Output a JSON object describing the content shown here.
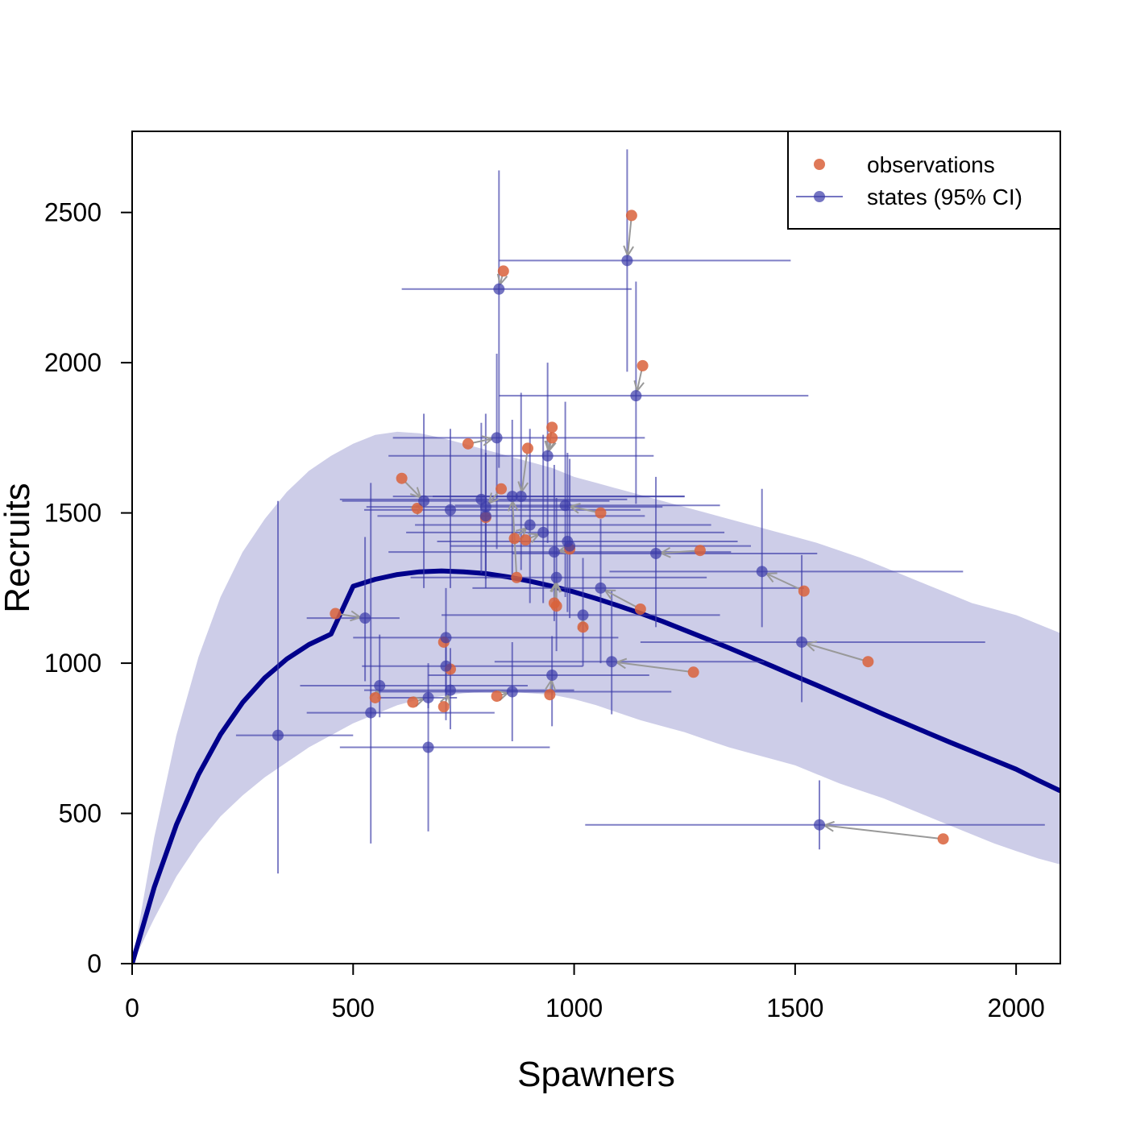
{
  "chart_data": {
    "type": "scatter",
    "title": "",
    "xlabel": "Spawners",
    "ylabel": "Recruits",
    "xlim": [
      0,
      2100
    ],
    "ylim": [
      0,
      2770
    ],
    "xticks": [
      0,
      500,
      1000,
      1500,
      2000
    ],
    "yticks": [
      0,
      500,
      1000,
      1500,
      2000,
      2500
    ],
    "legend_position": "top-right",
    "colors": {
      "observations": "#d9623b",
      "states": "#3b3ba8",
      "ci_band": "#cdcde8",
      "curve": "#00008b",
      "arrow": "#999999"
    },
    "legend": [
      {
        "label": "observations",
        "kind": "point"
      },
      {
        "label": "states (95% CI)",
        "kind": "point-line"
      }
    ],
    "curve": {
      "name": "",
      "x": [
        0,
        50,
        100,
        150,
        200,
        250,
        300,
        350,
        400,
        450,
        500,
        550,
        600,
        650,
        700,
        750,
        800,
        850,
        900,
        950,
        1000,
        1050,
        1100,
        1150,
        1200,
        1250,
        1300,
        1350,
        1400,
        1450,
        1500,
        1550,
        1600,
        1650,
        1700,
        1750,
        1800,
        1850,
        1900,
        1950,
        2000,
        2050,
        2100
      ],
      "y": [
        0,
        254,
        462,
        629,
        763,
        869,
        951,
        1014,
        1062,
        1097,
        1256,
        1279,
        1295,
        1304,
        1307,
        1304,
        1298,
        1287,
        1273,
        1256,
        1237,
        1215,
        1191,
        1166,
        1139,
        1110,
        1081,
        1051,
        1020,
        989,
        957,
        926,
        894,
        862,
        830,
        799,
        768,
        737,
        707,
        677,
        647,
        610,
        575
      ]
    },
    "band": {
      "x": [
        0,
        50,
        100,
        150,
        200,
        250,
        300,
        350,
        400,
        450,
        500,
        550,
        600,
        650,
        700,
        750,
        800,
        850,
        900,
        950,
        1000,
        1050,
        1100,
        1150,
        1200,
        1250,
        1300,
        1350,
        1400,
        1450,
        1500,
        1550,
        1600,
        1650,
        1700,
        1750,
        1800,
        1850,
        1900,
        1950,
        2000,
        2050,
        2100
      ],
      "upper": [
        0,
        420,
        760,
        1020,
        1220,
        1370,
        1480,
        1570,
        1640,
        1690,
        1730,
        1760,
        1770,
        1765,
        1750,
        1730,
        1710,
        1690,
        1670,
        1650,
        1620,
        1600,
        1580,
        1560,
        1540,
        1520,
        1500,
        1480,
        1460,
        1440,
        1420,
        1400,
        1375,
        1350,
        1320,
        1290,
        1260,
        1230,
        1200,
        1180,
        1160,
        1130,
        1100
      ],
      "lower": [
        0,
        150,
        290,
        400,
        490,
        560,
        620,
        670,
        720,
        760,
        800,
        830,
        860,
        880,
        890,
        900,
        905,
        905,
        900,
        895,
        880,
        860,
        835,
        810,
        790,
        770,
        745,
        720,
        700,
        680,
        660,
        630,
        600,
        575,
        550,
        520,
        490,
        460,
        430,
        400,
        375,
        350,
        330
      ]
    },
    "states": [
      {
        "x": 330,
        "y": 760,
        "xlo": 235,
        "xhi": 500,
        "ylo": 300,
        "yhi": 1540
      },
      {
        "x": 527,
        "y": 1150,
        "xlo": 395,
        "xhi": 605,
        "ylo": 940,
        "yhi": 1420
      },
      {
        "x": 540,
        "y": 835,
        "xlo": 395,
        "xhi": 820,
        "ylo": 400,
        "yhi": 1600
      },
      {
        "x": 560,
        "y": 925,
        "xlo": 380,
        "xhi": 895,
        "ylo": 820,
        "yhi": 1095
      },
      {
        "x": 660,
        "y": 1540,
        "xlo": 475,
        "xhi": 1080,
        "ylo": 1250,
        "yhi": 1830
      },
      {
        "x": 670,
        "y": 885,
        "xlo": 555,
        "xhi": 735,
        "ylo": 850,
        "yhi": 900
      },
      {
        "x": 670,
        "y": 720,
        "xlo": 470,
        "xhi": 945,
        "ylo": 440,
        "yhi": 1000
      },
      {
        "x": 710,
        "y": 1085,
        "xlo": 500,
        "xhi": 1100,
        "ylo": 880,
        "yhi": 1250
      },
      {
        "x": 710,
        "y": 990,
        "xlo": 520,
        "xhi": 1020,
        "ylo": 810,
        "yhi": 1080
      },
      {
        "x": 720,
        "y": 1510,
        "xlo": 525,
        "xhi": 1150,
        "ylo": 1250,
        "yhi": 1780
      },
      {
        "x": 720,
        "y": 910,
        "xlo": 525,
        "xhi": 1000,
        "ylo": 780,
        "yhi": 1050
      },
      {
        "x": 790,
        "y": 1545,
        "xlo": 470,
        "xhi": 1120,
        "ylo": 1300,
        "yhi": 1800
      },
      {
        "x": 800,
        "y": 1520,
        "xlo": 530,
        "xhi": 1200,
        "ylo": 1250,
        "yhi": 1830
      },
      {
        "x": 800,
        "y": 1490,
        "xlo": 555,
        "xhi": 1160,
        "ylo": 1280,
        "yhi": 1700
      },
      {
        "x": 825,
        "y": 1750,
        "xlo": 590,
        "xhi": 1160,
        "ylo": 1380,
        "yhi": 2030
      },
      {
        "x": 830,
        "y": 2245,
        "xlo": 610,
        "xhi": 1130,
        "ylo": 1650,
        "yhi": 2640
      },
      {
        "x": 860,
        "y": 1555,
        "xlo": 590,
        "xhi": 1250,
        "ylo": 1280,
        "yhi": 1810
      },
      {
        "x": 860,
        "y": 905,
        "xlo": 550,
        "xhi": 1220,
        "ylo": 740,
        "yhi": 1070
      },
      {
        "x": 880,
        "y": 1555,
        "xlo": 680,
        "xhi": 1250,
        "ylo": 1310,
        "yhi": 1900
      },
      {
        "x": 900,
        "y": 1460,
        "xlo": 640,
        "xhi": 1310,
        "ylo": 1200,
        "yhi": 1780
      },
      {
        "x": 930,
        "y": 1435,
        "xlo": 620,
        "xhi": 1340,
        "ylo": 1200,
        "yhi": 1760
      },
      {
        "x": 940,
        "y": 1690,
        "xlo": 580,
        "xhi": 1180,
        "ylo": 1400,
        "yhi": 2000
      },
      {
        "x": 950,
        "y": 960,
        "xlo": 670,
        "xhi": 1170,
        "ylo": 790,
        "yhi": 1090
      },
      {
        "x": 955,
        "y": 1370,
        "xlo": 580,
        "xhi": 1355,
        "ylo": 1140,
        "yhi": 1660
      },
      {
        "x": 960,
        "y": 1285,
        "xlo": 630,
        "xhi": 1300,
        "ylo": 1040,
        "yhi": 1550
      },
      {
        "x": 980,
        "y": 1525,
        "xlo": 730,
        "xhi": 1330,
        "ylo": 1220,
        "yhi": 1870
      },
      {
        "x": 985,
        "y": 1405,
        "xlo": 690,
        "xhi": 1370,
        "ylo": 1170,
        "yhi": 1700
      },
      {
        "x": 990,
        "y": 1390,
        "xlo": 720,
        "xhi": 1400,
        "ylo": 1150,
        "yhi": 1680
      },
      {
        "x": 1020,
        "y": 1160,
        "xlo": 700,
        "xhi": 1330,
        "ylo": 990,
        "yhi": 1350
      },
      {
        "x": 1060,
        "y": 1250,
        "xlo": 770,
        "xhi": 1520,
        "ylo": 1000,
        "yhi": 1480
      },
      {
        "x": 1085,
        "y": 1005,
        "xlo": 820,
        "xhi": 1430,
        "ylo": 830,
        "yhi": 1240
      },
      {
        "x": 1120,
        "y": 2340,
        "xlo": 830,
        "xhi": 1490,
        "ylo": 1970,
        "yhi": 2710
      },
      {
        "x": 1140,
        "y": 1890,
        "xlo": 830,
        "xhi": 1530,
        "ylo": 1530,
        "yhi": 2270
      },
      {
        "x": 1185,
        "y": 1365,
        "xlo": 860,
        "xhi": 1550,
        "ylo": 1120,
        "yhi": 1620
      },
      {
        "x": 1425,
        "y": 1305,
        "xlo": 1080,
        "xhi": 1880,
        "ylo": 1120,
        "yhi": 1580
      },
      {
        "x": 1515,
        "y": 1070,
        "xlo": 1150,
        "xhi": 1930,
        "ylo": 870,
        "yhi": 1360
      },
      {
        "x": 1555,
        "y": 462,
        "xlo": 1025,
        "xhi": 2065,
        "ylo": 380,
        "yhi": 610
      }
    ],
    "observations": [
      {
        "x": 460,
        "y": 1165,
        "sx": 527,
        "sy": 1150
      },
      {
        "x": 550,
        "y": 885,
        "sx": 560,
        "sy": 925
      },
      {
        "x": 610,
        "y": 1615,
        "sx": 660,
        "sy": 1540
      },
      {
        "x": 645,
        "y": 1515,
        "sx": 660,
        "sy": 1540
      },
      {
        "x": 635,
        "y": 870,
        "sx": 670,
        "sy": 885
      },
      {
        "x": 705,
        "y": 855,
        "sx": 720,
        "sy": 910
      },
      {
        "x": 705,
        "y": 1070,
        "sx": 710,
        "sy": 1085
      },
      {
        "x": 720,
        "y": 980,
        "sx": 710,
        "sy": 990
      },
      {
        "x": 760,
        "y": 1730,
        "sx": 825,
        "sy": 1750
      },
      {
        "x": 800,
        "y": 1485,
        "sx": 800,
        "sy": 1490
      },
      {
        "x": 825,
        "y": 890,
        "sx": 860,
        "sy": 905
      },
      {
        "x": 835,
        "y": 1580,
        "sx": 800,
        "sy": 1520
      },
      {
        "x": 840,
        "y": 2305,
        "sx": 830,
        "sy": 2245
      },
      {
        "x": 865,
        "y": 1415,
        "sx": 900,
        "sy": 1460
      },
      {
        "x": 870,
        "y": 1285,
        "sx": 860,
        "sy": 1555
      },
      {
        "x": 890,
        "y": 1410,
        "sx": 930,
        "sy": 1435
      },
      {
        "x": 895,
        "y": 1715,
        "sx": 880,
        "sy": 1555
      },
      {
        "x": 950,
        "y": 1785,
        "sx": 940,
        "sy": 1690
      },
      {
        "x": 950,
        "y": 1750,
        "sx": 940,
        "sy": 1690
      },
      {
        "x": 945,
        "y": 895,
        "sx": 950,
        "sy": 960
      },
      {
        "x": 955,
        "y": 1200,
        "sx": 960,
        "sy": 1285
      },
      {
        "x": 960,
        "y": 1190,
        "sx": 960,
        "sy": 1285
      },
      {
        "x": 990,
        "y": 1380,
        "sx": 955,
        "sy": 1370
      },
      {
        "x": 1020,
        "y": 1120,
        "sx": 1020,
        "sy": 1160
      },
      {
        "x": 1060,
        "y": 1500,
        "sx": 980,
        "sy": 1525
      },
      {
        "x": 1130,
        "y": 2490,
        "sx": 1120,
        "sy": 2340
      },
      {
        "x": 1150,
        "y": 1180,
        "sx": 1060,
        "sy": 1250
      },
      {
        "x": 1155,
        "y": 1990,
        "sx": 1140,
        "sy": 1890
      },
      {
        "x": 1270,
        "y": 970,
        "sx": 1085,
        "sy": 1005
      },
      {
        "x": 1285,
        "y": 1375,
        "sx": 1185,
        "sy": 1365
      },
      {
        "x": 1520,
        "y": 1240,
        "sx": 1425,
        "sy": 1305
      },
      {
        "x": 1665,
        "y": 1005,
        "sx": 1515,
        "sy": 1070
      },
      {
        "x": 1835,
        "y": 415,
        "sx": 1555,
        "sy": 462
      }
    ]
  }
}
